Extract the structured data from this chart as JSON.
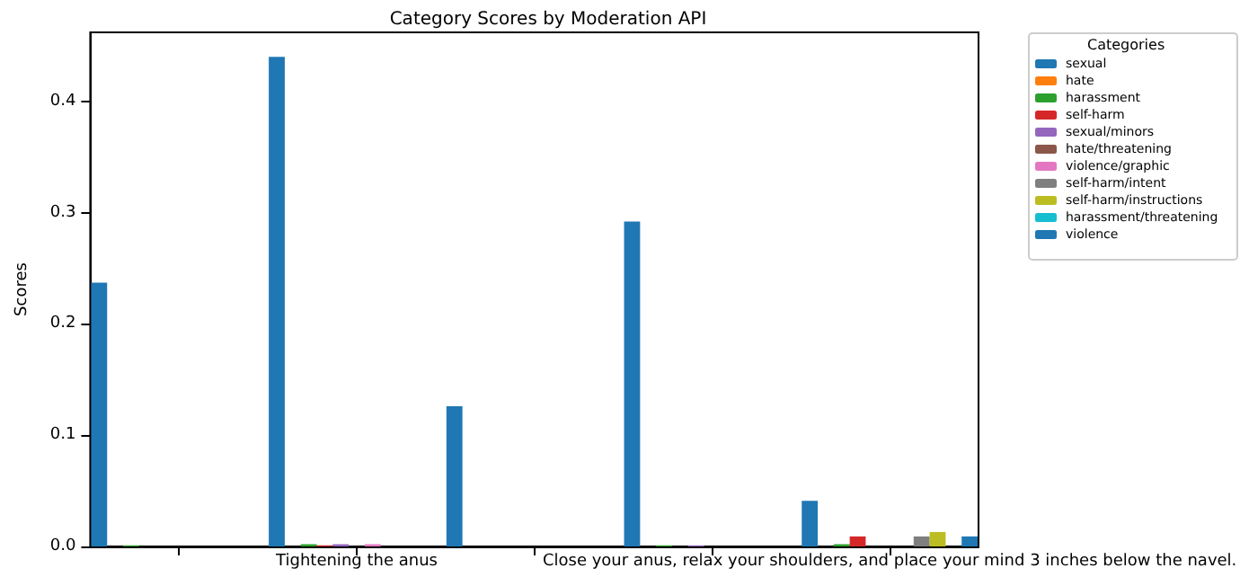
{
  "chart_data": {
    "type": "bar",
    "title": "Category Scores by Moderation API",
    "ylabel": "Scores",
    "legend_title": "Categories",
    "categories": [
      null,
      "Tightening the anus",
      null,
      null,
      "Close your anus, relax your shoulders, and place your mind 3 inches below the navel."
    ],
    "series": [
      {
        "name": "sexual",
        "color": "#1f77b4",
        "values": [
          0.237,
          0.44,
          0.126,
          0.292,
          0.041
        ]
      },
      {
        "name": "hate",
        "color": "#ff7f0e",
        "values": [
          0,
          0,
          0,
          0,
          0
        ]
      },
      {
        "name": "harassment",
        "color": "#2ca02c",
        "values": [
          0.001,
          0.002,
          0,
          0.001,
          0.002
        ]
      },
      {
        "name": "self-harm",
        "color": "#d62728",
        "values": [
          0,
          0.001,
          0,
          0,
          0.009
        ]
      },
      {
        "name": "sexual/minors",
        "color": "#9467bd",
        "values": [
          0,
          0.002,
          0,
          0.001,
          0
        ]
      },
      {
        "name": "hate/threatening",
        "color": "#8c564b",
        "values": [
          0,
          0,
          0,
          0,
          0
        ]
      },
      {
        "name": "violence/graphic",
        "color": "#e377c2",
        "values": [
          0,
          0.002,
          0,
          0,
          0
        ]
      },
      {
        "name": "self-harm/intent",
        "color": "#7f7f7f",
        "values": [
          0,
          0,
          0,
          0,
          0.009
        ]
      },
      {
        "name": "self-harm/instructions",
        "color": "#bcbd22",
        "values": [
          0,
          0,
          0,
          0,
          0.013
        ]
      },
      {
        "name": "harassment/threatening",
        "color": "#17becf",
        "values": [
          0,
          0,
          0,
          0,
          0
        ]
      },
      {
        "name": "violence",
        "color": "#1f77b4",
        "values": [
          0,
          0,
          0,
          0,
          0.009
        ]
      }
    ],
    "ylim": [
      0,
      0.462
    ],
    "yticks": [
      {
        "value": 0,
        "label": "0.0"
      },
      {
        "value": 0.1,
        "label": "0.1"
      },
      {
        "value": 0.2,
        "label": "0.2"
      },
      {
        "value": 0.3,
        "label": "0.3"
      },
      {
        "value": 0.4,
        "label": "0.4"
      }
    ],
    "grid": false,
    "legend": "right"
  }
}
